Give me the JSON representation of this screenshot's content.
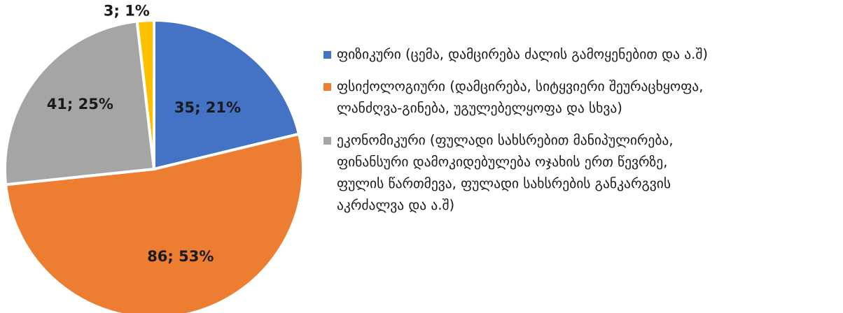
{
  "chart_data": {
    "type": "pie",
    "start_angle_deg": 0,
    "direction": "clockwise",
    "slices": [
      {
        "value": 35,
        "percent": 21,
        "label": "35;  21%",
        "color": "#4472C4",
        "legend": "ფიზიკური (ცემა,  დამცირება ძალის გამოყენებით და ა.შ)"
      },
      {
        "value": 86,
        "percent": 53,
        "label": "86;  53%",
        "color": "#ED7D31",
        "legend": "ფსიქოლოგიური (დამცირება, სიტყვიერი შეურაცხყოფა,\nლანძღვა-გინება, უგულებელყოფა და სხვა)"
      },
      {
        "value": 41,
        "percent": 25,
        "label": "41;  25%",
        "color": "#A5A5A5",
        "legend": "ეკონომიკური (ფულადი სახსრებით მანიპულირება,\nფინანსური დამოკიდებულება ოჯახის ერთ წევრზე,\nფულის წართმევა, ფულადი სახსრების განკარგვის\nაკრძალვა და ა.შ)"
      },
      {
        "value": 3,
        "percent": 1,
        "label": "3;  1%",
        "color": "#FFC000",
        "legend": ""
      }
    ],
    "legend_position": "right"
  }
}
